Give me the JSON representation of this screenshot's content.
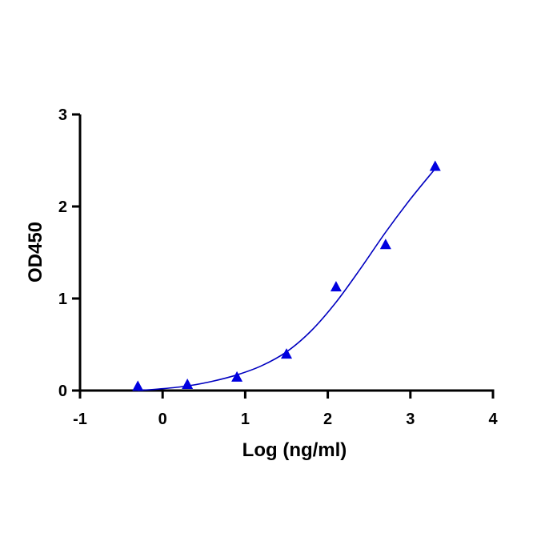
{
  "chart_data": {
    "type": "scatter",
    "title": "",
    "xlabel": "Log (ng/ml)",
    "ylabel": "OD450",
    "xlim": [
      -1,
      4
    ],
    "ylim": [
      0,
      3
    ],
    "x_ticks": [
      -1,
      0,
      1,
      2,
      3,
      4
    ],
    "y_ticks": [
      0,
      1,
      2,
      3
    ],
    "x_tick_labels": [
      "-1",
      "0",
      "1",
      "2",
      "3",
      "4"
    ],
    "y_tick_labels": [
      "0",
      "1",
      "2",
      "3"
    ],
    "grid": false,
    "legend": "none",
    "series": [
      {
        "name": "data",
        "marker": "triangle",
        "color": "#0000e0",
        "x": [
          -0.3,
          0.3,
          0.9,
          1.5,
          2.1,
          2.7,
          3.3
        ],
        "y": [
          0.04,
          0.06,
          0.14,
          0.39,
          1.12,
          1.58,
          2.43
        ]
      }
    ],
    "fit": {
      "name": "fit curve",
      "color": "#0000c0",
      "x": [
        -0.3,
        0.0,
        0.3,
        0.6,
        0.9,
        1.2,
        1.5,
        1.8,
        2.1,
        2.4,
        2.7,
        3.0,
        3.3
      ],
      "y": [
        0.0,
        0.02,
        0.05,
        0.1,
        0.17,
        0.27,
        0.42,
        0.65,
        0.96,
        1.33,
        1.72,
        2.08,
        2.41
      ]
    }
  }
}
